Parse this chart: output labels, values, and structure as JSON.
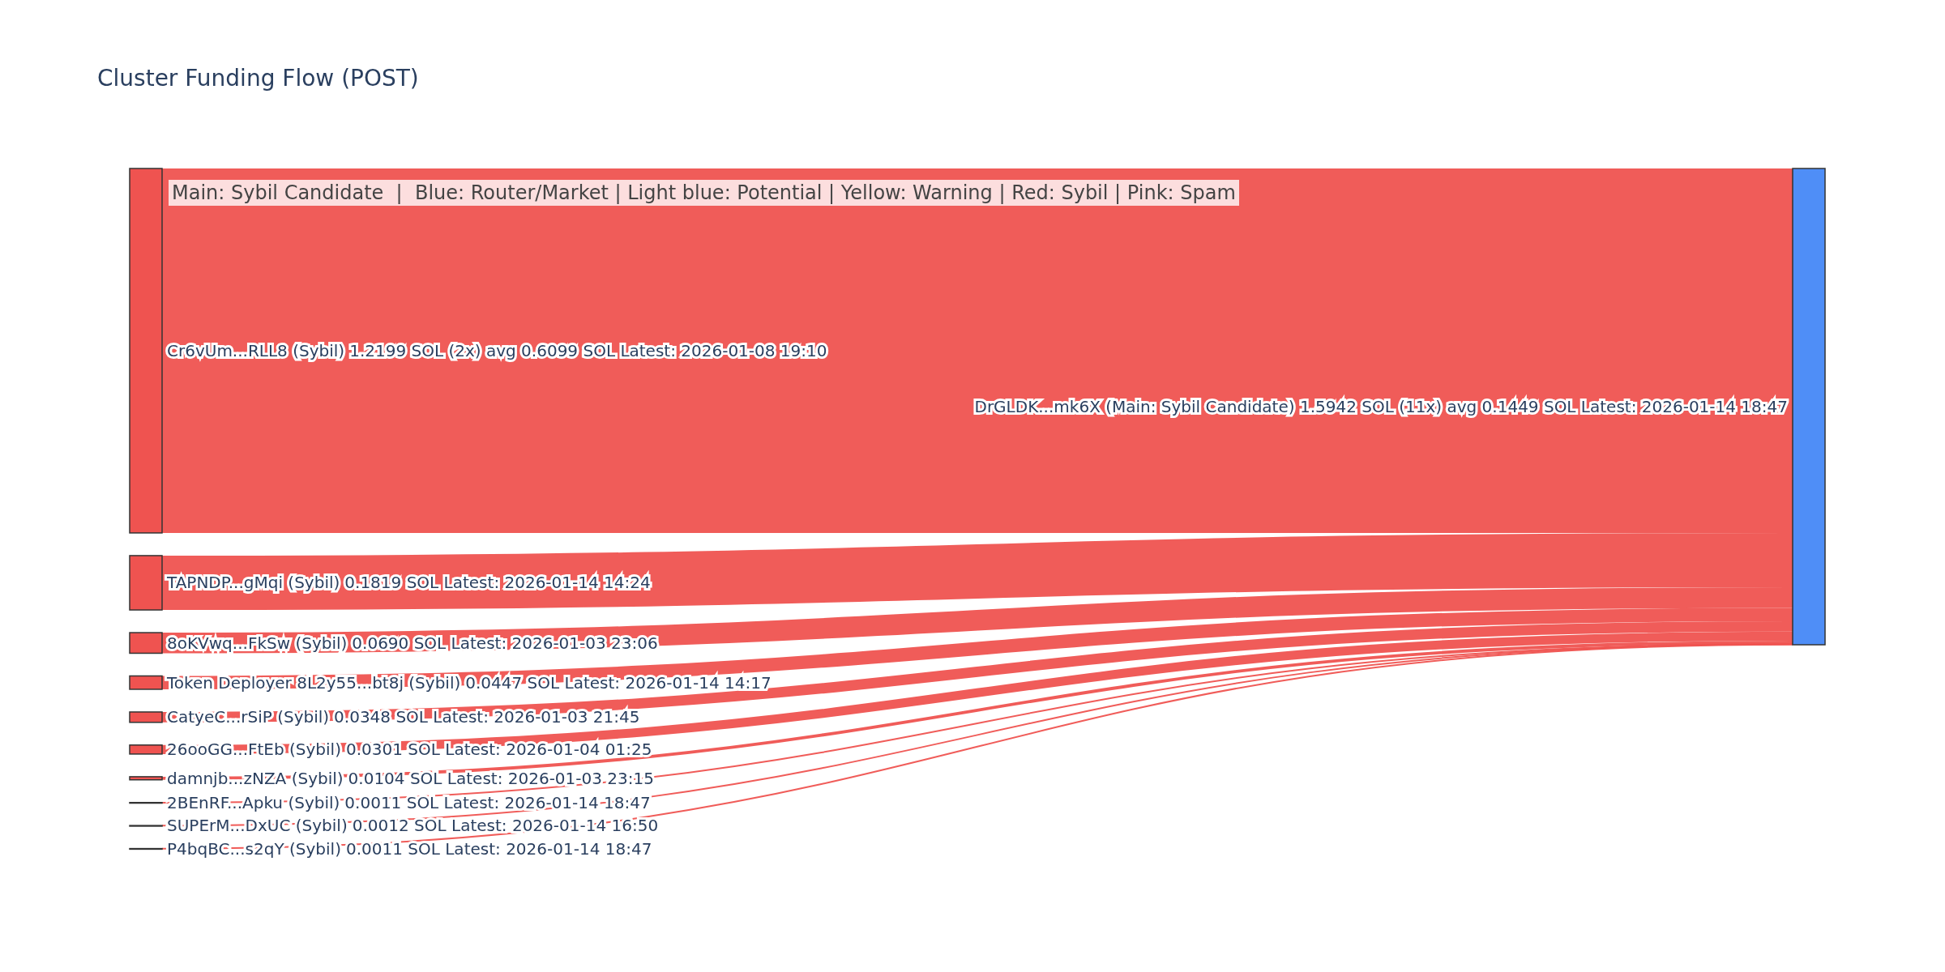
{
  "chart_data": {
    "type": "other",
    "title": "Cluster Funding Flow (POST)",
    "annotations": [
      "Main: Sybil Candidate  |  Blue: Router/Market | Light blue: Potential | Yellow: Warning | Red: Sybil | Pink: Spam"
    ],
    "categories": [
      "Cr6vUm...RLL8 (Sybil)",
      "TAPNDP...gMqi (Sybil)",
      "8oKVwq...FkSw (Sybil)",
      "Token Deployer 8L2y55...bt8j (Sybil)",
      "CatyeC...rSiP (Sybil)",
      "26ooGG...FtEb (Sybil)",
      "damnjb...zNZA (Sybil)",
      "2BEnRF...Apku (Sybil)",
      "SUPErM...DxUC (Sybil)",
      "P4bqBC...s2qY (Sybil)",
      "DrGLDK...mk6X (Main: Sybil Candidate) 1.5942 SOL (11x) avg 0.1449 SOL Latest: 2026-01-14 18:47"
    ],
    "values": [
      1.2199,
      0.1819,
      0.069,
      0.0447,
      0.0348,
      0.0301,
      0.0104,
      0.0011,
      0.0012,
      0.0011,
      null
    ],
    "value_labels": [
      "1.2199 SOL (2x) avg 0.6099 SOL Latest: 2026-01-08 19:10",
      "0.1819 SOL Latest: 2026-01-14 14:24",
      "0.0690 SOL Latest: 2026-01-03 23:06",
      "0.0447 SOL Latest: 2026-01-14 14:17",
      "0.0348 SOL Latest: 2026-01-03 21:45",
      "0.0301 SOL Latest: 2026-01-04 01:25",
      "0.0104 SOL Latest: 2026-01-03 23:15",
      "0.0011 SOL Latest: 2026-01-14 18:47",
      "0.0012 SOL Latest: 2026-01-14 16:50",
      "0.0011 SOL Latest: 2026-01-14 18:47",
      null
    ],
    "colors": [
      "#ef5350",
      "#ef5350",
      "#ef5350",
      "#ef5350",
      "#ef5350",
      "#ef5350",
      "#ef5350",
      "#ef5350",
      "#ef5350",
      "#ef5350",
      "#4f8ef7"
    ]
  }
}
